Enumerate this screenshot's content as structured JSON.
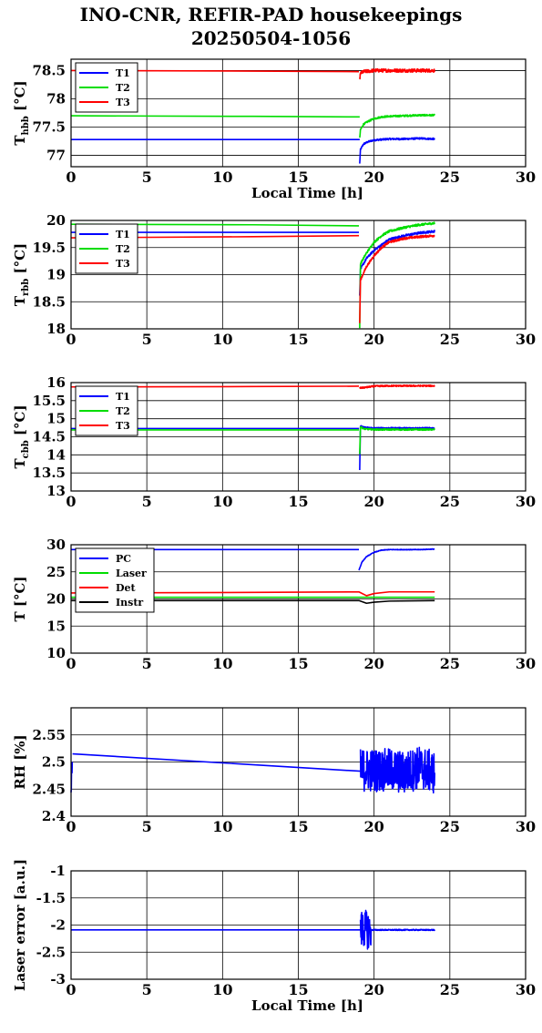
{
  "title_line1": "INO-CNR, REFIR-PAD housekeepings",
  "title_line2": "20250504-1056",
  "colors": {
    "blue": "#0000ff",
    "green": "#00dd00",
    "red": "#ff0000",
    "black": "#000000"
  },
  "chart_data": [
    {
      "type": "line",
      "ylabel_main": "T",
      "ylabel_sub": "hbb",
      "ylabel_unit": "[°C]",
      "xlabel": "Local Time [h]",
      "xlim": [
        0,
        30
      ],
      "xticks": [
        0,
        5,
        10,
        15,
        20,
        25,
        30
      ],
      "ylim": [
        76.8,
        78.7
      ],
      "yticks": [
        77,
        77.5,
        78,
        78.5
      ],
      "grid": true,
      "legend": "top-left",
      "series": [
        {
          "name": "T1",
          "color": "#0000ff",
          "segments": [
            {
              "x": [
                0,
                12,
                19.05
              ],
              "y": [
                77.28,
                77.28,
                77.28
              ]
            },
            {
              "x": [
                19.05,
                19.1,
                19.3,
                19.6,
                20.0,
                20.5,
                21.0,
                22.0,
                23.0,
                24.0
              ],
              "y": [
                76.85,
                77.1,
                77.2,
                77.24,
                77.27,
                77.28,
                77.29,
                77.29,
                77.3,
                77.29
              ],
              "noise": 0.015
            }
          ]
        },
        {
          "name": "T2",
          "color": "#00dd00",
          "segments": [
            {
              "x": [
                0,
                12,
                19.05
              ],
              "y": [
                77.7,
                77.69,
                77.68
              ]
            },
            {
              "x": [
                19.05,
                19.1,
                19.3,
                19.6,
                20.0,
                20.5,
                21.0,
                22.0,
                23.0,
                24.0
              ],
              "y": [
                77.3,
                77.45,
                77.55,
                77.6,
                77.65,
                77.68,
                77.69,
                77.7,
                77.71,
                77.71
              ],
              "noise": 0.015
            }
          ]
        },
        {
          "name": "T3",
          "color": "#ff0000",
          "segments": [
            {
              "x": [
                0,
                12,
                19.0
              ],
              "y": [
                78.5,
                78.49,
                78.48
              ]
            },
            {
              "x": [
                19.05,
                19.1,
                19.3,
                20.0,
                21.0,
                22.0,
                23.0,
                24.0
              ],
              "y": [
                78.35,
                78.45,
                78.48,
                78.5,
                78.5,
                78.5,
                78.5,
                78.5
              ],
              "noise": 0.03
            }
          ]
        }
      ]
    },
    {
      "type": "line",
      "ylabel_main": "T",
      "ylabel_sub": "rbb",
      "ylabel_unit": "[°C]",
      "xlabel": "",
      "xlim": [
        0,
        30
      ],
      "xticks": [
        0,
        5,
        10,
        15,
        20,
        25,
        30
      ],
      "ylim": [
        18,
        20
      ],
      "yticks": [
        18,
        18.5,
        19,
        19.5,
        20
      ],
      "grid": true,
      "legend": "top-left",
      "series": [
        {
          "name": "T1",
          "color": "#0000ff",
          "segments": [
            {
              "x": [
                0,
                12,
                19.0
              ],
              "y": [
                19.78,
                19.78,
                19.78
              ]
            },
            {
              "x": [
                19.05,
                19.1,
                19.5,
                20.0,
                20.5,
                21.0,
                22.0,
                23.0,
                24.0
              ],
              "y": [
                18.6,
                19.1,
                19.3,
                19.45,
                19.55,
                19.65,
                19.72,
                19.77,
                19.8
              ],
              "noise": 0.02
            }
          ]
        },
        {
          "name": "T2",
          "color": "#00dd00",
          "segments": [
            {
              "x": [
                0,
                12,
                19.0
              ],
              "y": [
                19.93,
                19.92,
                19.9
              ]
            },
            {
              "x": [
                19.05,
                19.1,
                19.5,
                20.0,
                20.5,
                21.0,
                22.0,
                23.0,
                24.0
              ],
              "y": [
                18.0,
                19.2,
                19.4,
                19.6,
                19.72,
                19.8,
                19.87,
                19.92,
                19.95
              ],
              "noise": 0.02
            }
          ]
        },
        {
          "name": "T3",
          "color": "#ff0000",
          "segments": [
            {
              "x": [
                0,
                12,
                19.0
              ],
              "y": [
                19.68,
                19.7,
                19.72
              ]
            },
            {
              "x": [
                19.05,
                19.1,
                19.5,
                20.0,
                20.5,
                21.0,
                22.0,
                23.0,
                24.0
              ],
              "y": [
                18.1,
                18.9,
                19.15,
                19.35,
                19.5,
                19.6,
                19.67,
                19.7,
                19.72
              ],
              "noise": 0.02
            }
          ]
        }
      ]
    },
    {
      "type": "line",
      "ylabel_main": "T",
      "ylabel_sub": "cbb",
      "ylabel_unit": "[°C]",
      "xlabel": "",
      "xlim": [
        0,
        30
      ],
      "xticks": [
        0,
        5,
        10,
        15,
        20,
        25,
        30
      ],
      "ylim": [
        13,
        16
      ],
      "yticks": [
        13,
        13.5,
        14,
        14.5,
        15,
        15.5,
        16
      ],
      "grid": true,
      "legend": "top-left",
      "series": [
        {
          "name": "T1",
          "color": "#0000ff",
          "segments": [
            {
              "x": [
                0,
                19.0
              ],
              "y": [
                14.73,
                14.73
              ]
            },
            {
              "x": [
                19.05,
                19.1,
                19.3,
                20.0,
                24.0
              ],
              "y": [
                13.6,
                14.8,
                14.76,
                14.74,
                14.74
              ],
              "noise": 0.02
            }
          ]
        },
        {
          "name": "T2",
          "color": "#00dd00",
          "segments": [
            {
              "x": [
                0,
                19.0
              ],
              "y": [
                14.69,
                14.69
              ]
            },
            {
              "x": [
                19.05,
                19.1,
                19.3,
                20.0,
                24.0
              ],
              "y": [
                14.0,
                14.78,
                14.72,
                14.7,
                14.7
              ],
              "noise": 0.02
            }
          ]
        },
        {
          "name": "T3",
          "color": "#ff0000",
          "segments": [
            {
              "x": [
                0,
                12,
                19.0
              ],
              "y": [
                15.88,
                15.89,
                15.9
              ]
            },
            {
              "x": [
                19.05,
                19.5,
                20.0,
                21.0,
                24.0
              ],
              "y": [
                15.85,
                15.87,
                15.9,
                15.91,
                15.91
              ],
              "noise": 0.02
            }
          ]
        }
      ]
    },
    {
      "type": "line",
      "ylabel_main": "T",
      "ylabel_sub": "",
      "ylabel_unit": "[°C]",
      "xlabel": "",
      "xlim": [
        0,
        30
      ],
      "xticks": [
        0,
        5,
        10,
        15,
        20,
        25,
        30
      ],
      "ylim": [
        10,
        30
      ],
      "yticks": [
        10,
        15,
        20,
        25,
        30
      ],
      "grid": true,
      "legend": "top-left",
      "series": [
        {
          "name": "PC",
          "color": "#0000ff",
          "segments": [
            {
              "x": [
                0,
                19.0
              ],
              "y": [
                29.1,
                29.1
              ]
            },
            {
              "x": [
                19.0,
                19.2,
                19.5,
                20.0,
                20.5,
                21.0,
                22.0,
                23.0,
                24.0
              ],
              "y": [
                25.3,
                26.8,
                27.8,
                28.6,
                29.0,
                29.1,
                29.1,
                29.1,
                29.2
              ],
              "noise": 0.05
            }
          ]
        },
        {
          "name": "Laser",
          "color": "#00dd00",
          "segments": [
            {
              "x": [
                0,
                24.0
              ],
              "y": [
                20.3,
                20.3
              ]
            }
          ]
        },
        {
          "name": "Det",
          "color": "#ff0000",
          "segments": [
            {
              "x": [
                0,
                12,
                19.0,
                19.5,
                20.0,
                21.0,
                24.0
              ],
              "y": [
                21.1,
                21.2,
                21.3,
                20.6,
                21.0,
                21.3,
                21.3
              ]
            }
          ]
        },
        {
          "name": "Instr",
          "color": "#000000",
          "segments": [
            {
              "x": [
                0,
                19.0,
                19.5,
                20.0,
                21.0,
                24.0
              ],
              "y": [
                19.7,
                19.7,
                19.2,
                19.4,
                19.6,
                19.7
              ]
            }
          ]
        }
      ]
    },
    {
      "type": "line",
      "ylabel_main": "RH [%]",
      "ylabel_sub": "",
      "ylabel_unit": "",
      "xlabel": "",
      "xlim": [
        0,
        30
      ],
      "xticks": [
        0,
        5,
        10,
        15,
        20,
        25,
        30
      ],
      "ylim": [
        2.4,
        2.6
      ],
      "yticks": [
        2.4,
        2.45,
        2.5,
        2.55
      ],
      "grid": true,
      "legend": "",
      "series": [
        {
          "name": "",
          "color": "#0000ff",
          "segments": [
            {
              "x": [
                0,
                0.08
              ],
              "y": [
                2.43,
                2.5
              ],
              "noise": 0.03
            },
            {
              "x": [
                0.1,
                19.1
              ],
              "y": [
                2.515,
                2.483
              ]
            },
            {
              "x": [
                19.1,
                20.0,
                21.0,
                22.0,
                23.0,
                24.0
              ],
              "y": [
                2.485,
                2.485,
                2.485,
                2.48,
                2.49,
                2.48
              ],
              "noise": 0.04
            }
          ]
        }
      ]
    },
    {
      "type": "line",
      "ylabel_main": "Laser error [a.u.]",
      "ylabel_sub": "",
      "ylabel_unit": "",
      "xlabel": "Local Time [h]",
      "xlim": [
        0,
        30
      ],
      "xticks": [
        0,
        5,
        10,
        15,
        20,
        25,
        30
      ],
      "ylim": [
        -3,
        -1
      ],
      "yticks": [
        -3,
        -2.5,
        -2,
        -1.5,
        -1
      ],
      "grid": true,
      "legend": "",
      "series": [
        {
          "name": "",
          "color": "#0000ff",
          "segments": [
            {
              "x": [
                0,
                19.1
              ],
              "y": [
                -2.09,
                -2.09
              ]
            },
            {
              "x": [
                19.1,
                19.3,
                19.6,
                19.8
              ],
              "y": [
                -2.1,
                -2.05,
                -2.1,
                -2.1
              ],
              "noise": 0.35
            },
            {
              "x": [
                19.8,
                24.0
              ],
              "y": [
                -2.09,
                -2.09
              ],
              "noise": 0.01
            }
          ]
        }
      ]
    }
  ]
}
